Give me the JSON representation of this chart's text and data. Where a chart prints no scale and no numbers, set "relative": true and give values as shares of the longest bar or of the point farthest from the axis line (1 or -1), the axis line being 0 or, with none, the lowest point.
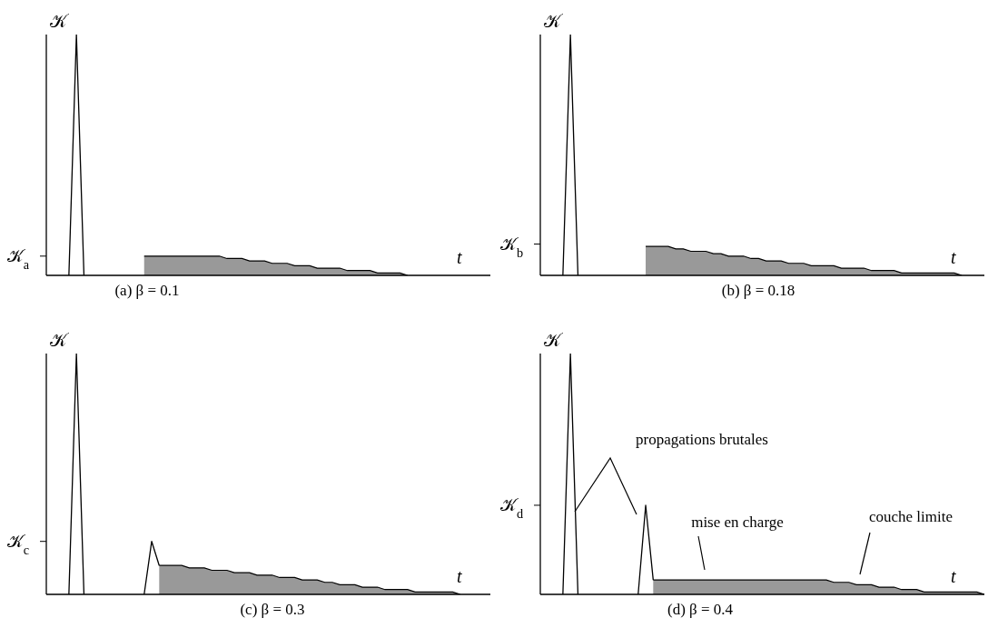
{
  "chart_data": [
    {
      "type": "line",
      "title": "(a) β = 0.1",
      "ylabel": "𝒦",
      "xlabel": "t",
      "relative": true,
      "categories": [
        null,
        null,
        null,
        null,
        null,
        null,
        null,
        null,
        null,
        null,
        null,
        null,
        null,
        null,
        null,
        null,
        null,
        null,
        null,
        null,
        null,
        null,
        null,
        null,
        null,
        null,
        null,
        null,
        null,
        null,
        null,
        null,
        null,
        null,
        null,
        null,
        null,
        null,
        null,
        null,
        null,
        null,
        null,
        null,
        null,
        null,
        null,
        null,
        null,
        null,
        null,
        null,
        null,
        null,
        null,
        null,
        null,
        null,
        null,
        null
      ],
      "ref_lines": [
        {
          "axis": "y",
          "value": 0.08,
          "label": "𝒦$_{a}$"
        }
      ],
      "series": [
        {
          "color": "#000000",
          "values": [
            null,
            null,
            null,
            0,
            1,
            0,
            null,
            null,
            null,
            null,
            null,
            null,
            null,
            null,
            null,
            null,
            null,
            null,
            null,
            null,
            null,
            null,
            null,
            null,
            null,
            null,
            null,
            null,
            null,
            null,
            null,
            null,
            null,
            null,
            null,
            null,
            null,
            null,
            null,
            null,
            null,
            null,
            null,
            null,
            null,
            null,
            null,
            null,
            null,
            null,
            null,
            null,
            null,
            null,
            null,
            null,
            null,
            null,
            null,
            null
          ]
        },
        {
          "type": "area",
          "color": "#999999",
          "values": [
            null,
            null,
            null,
            null,
            null,
            null,
            null,
            null,
            null,
            null,
            null,
            null,
            null,
            0.08,
            0.08,
            0.08,
            0.08,
            0.08,
            0.08,
            0.08,
            0.08,
            0.08,
            0.08,
            0.08,
            0.07,
            0.07,
            0.07,
            0.06,
            0.06,
            0.06,
            0.05,
            0.05,
            0.05,
            0.04,
            0.04,
            0.04,
            0.03,
            0.03,
            0.03,
            0.03,
            0.02,
            0.02,
            0.02,
            0.02,
            0.01,
            0.01,
            0.01,
            0.01,
            0,
            null,
            null,
            null,
            null,
            null,
            null,
            null,
            null,
            null,
            null,
            null
          ]
        }
      ]
    },
    {
      "type": "line",
      "title": "(b) β = 0.18",
      "ylabel": "𝒦",
      "xlabel": "t",
      "relative": true,
      "categories": [
        null,
        null,
        null,
        null,
        null,
        null,
        null,
        null,
        null,
        null,
        null,
        null,
        null,
        null,
        null,
        null,
        null,
        null,
        null,
        null,
        null,
        null,
        null,
        null,
        null,
        null,
        null,
        null,
        null,
        null,
        null,
        null,
        null,
        null,
        null,
        null,
        null,
        null,
        null,
        null,
        null,
        null,
        null,
        null,
        null,
        null,
        null,
        null,
        null,
        null,
        null,
        null,
        null,
        null,
        null,
        null,
        null,
        null,
        null,
        null
      ],
      "ref_lines": [
        {
          "axis": "y",
          "value": 0.13,
          "label": "𝒦$_{b}$"
        }
      ],
      "series": [
        {
          "color": "#000000",
          "values": [
            null,
            null,
            null,
            0,
            1,
            0,
            null,
            null,
            null,
            null,
            null,
            null,
            null,
            null,
            null,
            null,
            null,
            null,
            null,
            null,
            null,
            null,
            null,
            null,
            null,
            null,
            null,
            null,
            null,
            null,
            null,
            null,
            null,
            null,
            null,
            null,
            null,
            null,
            null,
            null,
            null,
            null,
            null,
            null,
            null,
            null,
            null,
            null,
            null,
            null,
            null,
            null,
            null,
            null,
            null,
            null,
            null,
            null,
            null,
            null
          ]
        },
        {
          "type": "area",
          "color": "#999999",
          "values": [
            null,
            null,
            null,
            null,
            null,
            null,
            null,
            null,
            null,
            null,
            null,
            null,
            null,
            null,
            0.12,
            0.12,
            0.12,
            0.12,
            0.11,
            0.11,
            0.1,
            0.1,
            0.1,
            0.09,
            0.09,
            0.08,
            0.08,
            0.08,
            0.07,
            0.07,
            0.06,
            0.06,
            0.06,
            0.05,
            0.05,
            0.05,
            0.04,
            0.04,
            0.04,
            0.04,
            0.03,
            0.03,
            0.03,
            0.03,
            0.02,
            0.02,
            0.02,
            0.02,
            0.01,
            0.01,
            0.01,
            0.01,
            0.01,
            0.01,
            0.01,
            0.01,
            0,
            null,
            null,
            null
          ]
        }
      ]
    },
    {
      "type": "line",
      "title": "(c) β = 0.3",
      "ylabel": "𝒦",
      "xlabel": "t",
      "relative": true,
      "categories": [
        null,
        null,
        null,
        null,
        null,
        null,
        null,
        null,
        null,
        null,
        null,
        null,
        null,
        null,
        null,
        null,
        null,
        null,
        null,
        null,
        null,
        null,
        null,
        null,
        null,
        null,
        null,
        null,
        null,
        null,
        null,
        null,
        null,
        null,
        null,
        null,
        null,
        null,
        null,
        null,
        null,
        null,
        null,
        null,
        null,
        null,
        null,
        null,
        null,
        null,
        null,
        null,
        null,
        null,
        null,
        null,
        null,
        null,
        null,
        null
      ],
      "ref_lines": [
        {
          "axis": "y",
          "value": 0.22,
          "label": "𝒦$_{c}$"
        }
      ],
      "series": [
        {
          "color": "#000000",
          "values": [
            null,
            null,
            null,
            0,
            1,
            0,
            null,
            null,
            null,
            null,
            null,
            null,
            null,
            0,
            0.22,
            0.12,
            null,
            null,
            null,
            null,
            null,
            null,
            null,
            null,
            null,
            null,
            null,
            null,
            null,
            null,
            null,
            null,
            null,
            null,
            null,
            null,
            null,
            null,
            null,
            null,
            null,
            null,
            null,
            null,
            null,
            null,
            null,
            null,
            null,
            null,
            null,
            null,
            null,
            null,
            null,
            null,
            null,
            null,
            null,
            null
          ]
        },
        {
          "type": "area",
          "color": "#999999",
          "values": [
            null,
            null,
            null,
            null,
            null,
            null,
            null,
            null,
            null,
            null,
            null,
            null,
            null,
            null,
            null,
            0.12,
            0.12,
            0.12,
            0.12,
            0.11,
            0.11,
            0.11,
            0.1,
            0.1,
            0.1,
            0.09,
            0.09,
            0.09,
            0.08,
            0.08,
            0.08,
            0.07,
            0.07,
            0.07,
            0.06,
            0.06,
            0.06,
            0.05,
            0.05,
            0.04,
            0.04,
            0.04,
            0.03,
            0.03,
            0.03,
            0.02,
            0.02,
            0.02,
            0.02,
            0.01,
            0.01,
            0.01,
            0.01,
            0.01,
            0.01,
            0,
            null,
            null,
            null,
            null
          ]
        }
      ]
    },
    {
      "type": "line",
      "title": "(d) β = 0.4",
      "ylabel": "𝒦",
      "xlabel": "t",
      "relative": true,
      "categories": [
        null,
        null,
        null,
        null,
        null,
        null,
        null,
        null,
        null,
        null,
        null,
        null,
        null,
        null,
        null,
        null,
        null,
        null,
        null,
        null,
        null,
        null,
        null,
        null,
        null,
        null,
        null,
        null,
        null,
        null,
        null,
        null,
        null,
        null,
        null,
        null,
        null,
        null,
        null,
        null,
        null,
        null,
        null,
        null,
        null,
        null,
        null,
        null,
        null,
        null,
        null,
        null,
        null,
        null,
        null,
        null,
        null,
        null,
        null,
        null
      ],
      "ref_lines": [
        {
          "axis": "y",
          "value": 0.37,
          "label": "𝒦$_{d}$"
        }
      ],
      "annotations": [
        "propagations brutales",
        "mise en charge",
        "couche limite"
      ],
      "series": [
        {
          "color": "#000000",
          "values": [
            null,
            null,
            null,
            0,
            1,
            0,
            null,
            null,
            null,
            null,
            null,
            null,
            null,
            0,
            0.37,
            0.06,
            null,
            null,
            null,
            null,
            null,
            null,
            null,
            null,
            null,
            null,
            null,
            null,
            null,
            null,
            null,
            null,
            null,
            null,
            null,
            null,
            null,
            null,
            null,
            null,
            null,
            null,
            null,
            null,
            null,
            null,
            null,
            null,
            null,
            null,
            null,
            null,
            null,
            null,
            null,
            null,
            null,
            null,
            null,
            null
          ]
        },
        {
          "type": "area",
          "color": "#999999",
          "values": [
            null,
            null,
            null,
            null,
            null,
            null,
            null,
            null,
            null,
            null,
            null,
            null,
            null,
            null,
            null,
            0.06,
            0.06,
            0.06,
            0.06,
            0.06,
            0.06,
            0.06,
            0.06,
            0.06,
            0.06,
            0.06,
            0.06,
            0.06,
            0.06,
            0.06,
            0.06,
            0.06,
            0.06,
            0.06,
            0.06,
            0.06,
            0.06,
            0.06,
            0.06,
            0.05,
            0.05,
            0.05,
            0.04,
            0.04,
            0.04,
            0.03,
            0.03,
            0.03,
            0.02,
            0.02,
            0.02,
            0.01,
            0.01,
            0.01,
            0.01,
            0.01,
            0.01,
            0.01,
            0.01,
            0
          ]
        }
      ]
    }
  ]
}
